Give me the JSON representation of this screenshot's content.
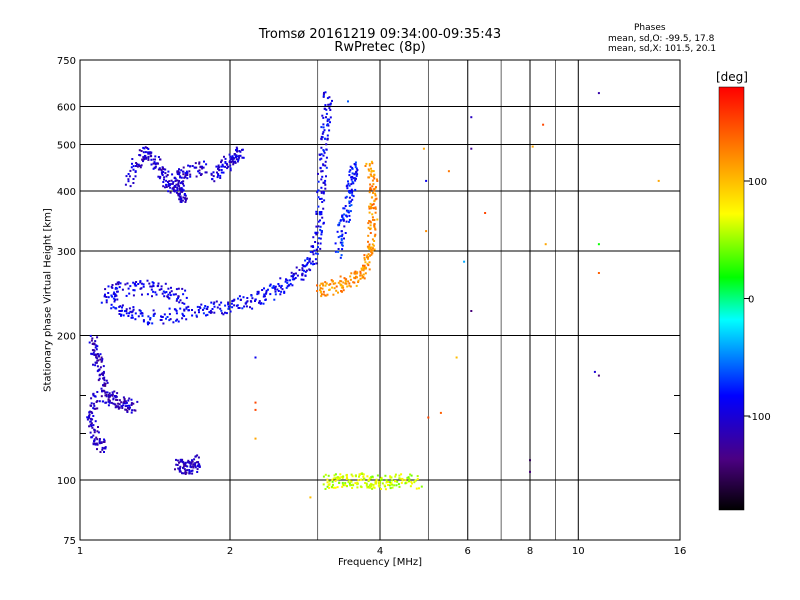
{
  "chart_data": {
    "type": "scatter",
    "title": "Tromsø 20161219 09:34:00-09:35:43",
    "subtitle": "RwPretec (8p)",
    "xlabel": "Frequency [MHz]",
    "ylabel": "Stationary phase Virtual Height [km]",
    "x_scale": "log",
    "y_scale": "log",
    "xlim": [
      1,
      16
    ],
    "ylim": [
      75,
      750
    ],
    "x_ticks": [
      1,
      2,
      4,
      6,
      8,
      10,
      16
    ],
    "x_minor_ticks": [
      3,
      5,
      7,
      9
    ],
    "y_ticks": [
      75,
      100,
      200,
      300,
      400,
      500,
      600,
      750
    ],
    "y_minor_ticks": [
      125,
      150
    ],
    "grid": true,
    "phases": {
      "heading": "Phases",
      "o_mode": "mean, sd,O: -99.5, 17.8",
      "x_mode": "mean, sd,X: 101.5, 20.1"
    },
    "colorbar": {
      "label": "[deg]",
      "range": [
        -180,
        180
      ],
      "ticks": [
        100,
        0,
        -100
      ]
    },
    "traces": [
      {
        "name": "",
        "phase": -90,
        "freq": [
          1.15,
          3.1
        ],
        "height": [
          220,
          265
        ],
        "segments": [
          [
            1.15,
            235
          ],
          [
            1.25,
            222
          ],
          [
            1.4,
            218
          ],
          [
            1.6,
            222
          ],
          [
            1.8,
            228
          ],
          [
            2.0,
            230
          ],
          [
            2.2,
            236
          ],
          [
            2.4,
            245
          ],
          [
            2.6,
            258
          ],
          [
            2.8,
            272
          ],
          [
            2.95,
            290
          ],
          [
            3.02,
            330
          ],
          [
            3.05,
            400
          ],
          [
            3.08,
            470
          ],
          [
            3.12,
            560
          ],
          [
            3.15,
            640
          ]
        ]
      },
      {
        "name": "",
        "phase": -95,
        "freq": [
          1.12,
          1.6
        ],
        "height": [
          232,
          255
        ],
        "segments": [
          [
            1.12,
            242
          ],
          [
            1.2,
            250
          ],
          [
            1.35,
            252
          ],
          [
            1.5,
            248
          ],
          [
            1.62,
            240
          ]
        ]
      },
      {
        "name": "",
        "phase": 120,
        "freq": [
          3.0,
          3.95
        ],
        "height": [
          245,
          470
        ],
        "segments": [
          [
            3.0,
            248
          ],
          [
            3.2,
            252
          ],
          [
            3.45,
            258
          ],
          [
            3.65,
            268
          ],
          [
            3.78,
            285
          ],
          [
            3.85,
            315
          ],
          [
            3.88,
            360
          ],
          [
            3.88,
            410
          ],
          [
            3.8,
            460
          ]
        ]
      },
      {
        "name": "",
        "phase": -80,
        "freq": [
          3.3,
          3.6
        ],
        "height": [
          300,
          450
        ],
        "segments": [
          [
            3.3,
            300
          ],
          [
            3.38,
            340
          ],
          [
            3.45,
            380
          ],
          [
            3.52,
            420
          ],
          [
            3.55,
            450
          ]
        ]
      },
      {
        "name": "",
        "phase": -110,
        "freq": [
          1.05,
          1.28
        ],
        "height": [
          115,
          195
        ],
        "segments": [
          [
            1.06,
            195
          ],
          [
            1.08,
            180
          ],
          [
            1.1,
            165
          ],
          [
            1.14,
            150
          ],
          [
            1.2,
            145
          ],
          [
            1.28,
            142
          ],
          [
            1.08,
            150
          ],
          [
            1.05,
            135
          ],
          [
            1.08,
            120
          ],
          [
            1.12,
            118
          ]
        ]
      },
      {
        "name": "",
        "phase": -105,
        "freq": [
          1.25,
          1.8
        ],
        "height": [
          385,
          490
        ],
        "segments": [
          [
            1.25,
            420
          ],
          [
            1.32,
            470
          ],
          [
            1.38,
            480
          ],
          [
            1.45,
            440
          ],
          [
            1.5,
            420
          ],
          [
            1.58,
            400
          ],
          [
            1.62,
            390
          ],
          [
            1.55,
            430
          ],
          [
            1.65,
            440
          ],
          [
            1.8,
            455
          ]
        ]
      },
      {
        "name": "",
        "phase": -100,
        "freq": [
          1.85,
          2.1
        ],
        "height": [
          410,
          485
        ],
        "segments": [
          [
            1.85,
            430
          ],
          [
            1.95,
            450
          ],
          [
            2.05,
            470
          ],
          [
            2.1,
            480
          ]
        ]
      },
      {
        "name": "",
        "phase": -110,
        "freq": [
          1.58,
          1.75
        ],
        "height": [
          105,
          112
        ],
        "segments": [
          [
            1.58,
            108
          ],
          [
            1.62,
            106
          ],
          [
            1.68,
            107
          ],
          [
            1.72,
            110
          ]
        ]
      },
      {
        "name": "",
        "phase": 60,
        "freq": [
          3.1,
          4.9
        ],
        "height": [
          97,
          101
        ],
        "segments": [
          [
            3.1,
            99
          ],
          [
            3.3,
            100
          ],
          [
            3.5,
            99
          ],
          [
            3.7,
            100
          ],
          [
            3.9,
            99
          ],
          [
            4.1,
            99
          ],
          [
            4.4,
            100
          ],
          [
            4.8,
            99
          ]
        ]
      }
    ],
    "scattered_points": [
      {
        "freq": 2.25,
        "height": 180,
        "phase": -90
      },
      {
        "freq": 2.25,
        "height": 145,
        "phase": 150
      },
      {
        "freq": 2.25,
        "height": 140,
        "phase": 150
      },
      {
        "freq": 2.25,
        "height": 122,
        "phase": 110
      },
      {
        "freq": 2.9,
        "height": 92,
        "phase": 100
      },
      {
        "freq": 3.45,
        "height": 615,
        "phase": -60
      },
      {
        "freq": 4.9,
        "height": 490,
        "phase": 110
      },
      {
        "freq": 4.95,
        "height": 420,
        "phase": -90
      },
      {
        "freq": 4.95,
        "height": 330,
        "phase": 120
      },
      {
        "freq": 5.5,
        "height": 440,
        "phase": 130
      },
      {
        "freq": 5.9,
        "height": 285,
        "phase": -40
      },
      {
        "freq": 6.1,
        "height": 570,
        "phase": -110
      },
      {
        "freq": 6.1,
        "height": 490,
        "phase": -130
      },
      {
        "freq": 6.1,
        "height": 225,
        "phase": -140
      },
      {
        "freq": 6.5,
        "height": 360,
        "phase": 150
      },
      {
        "freq": 8.0,
        "height": 110,
        "phase": -150
      },
      {
        "freq": 8.0,
        "height": 104,
        "phase": -140
      },
      {
        "freq": 8.1,
        "height": 495,
        "phase": 110
      },
      {
        "freq": 8.5,
        "height": 550,
        "phase": 150
      },
      {
        "freq": 8.6,
        "height": 310,
        "phase": 110
      },
      {
        "freq": 11.0,
        "height": 640,
        "phase": -120
      },
      {
        "freq": 11.0,
        "height": 270,
        "phase": 140
      },
      {
        "freq": 11.0,
        "height": 310,
        "phase": 20
      },
      {
        "freq": 10.8,
        "height": 168,
        "phase": -100
      },
      {
        "freq": 11.0,
        "height": 165,
        "phase": -140
      },
      {
        "freq": 14.5,
        "height": 420,
        "phase": 110
      },
      {
        "freq": 5.0,
        "height": 135,
        "phase": 150
      },
      {
        "freq": 5.3,
        "height": 138,
        "phase": 140
      },
      {
        "freq": 5.7,
        "height": 180,
        "phase": 100
      }
    ]
  }
}
